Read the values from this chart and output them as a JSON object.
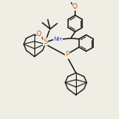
{
  "background": "#eeeee4",
  "bond_color": "#1a1a1a",
  "atom_colors": {
    "S": "#c87800",
    "O": "#dd3300",
    "N": "#2244cc",
    "P": "#dd7700",
    "C": "#1a1a1a"
  },
  "figsize": [
    1.52,
    1.52
  ],
  "dpi": 100
}
